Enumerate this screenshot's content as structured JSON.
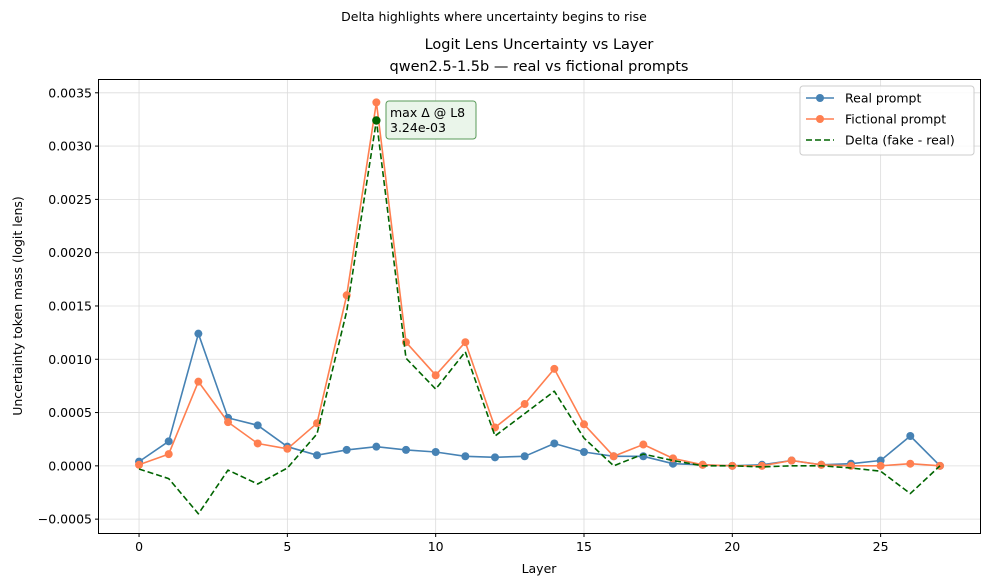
{
  "figure": {
    "suptitle": "Delta highlights where uncertainty begins to rise"
  },
  "chart_data": {
    "type": "line",
    "title_line1": "Logit Lens Uncertainty vs Layer",
    "title_line2": "qwen2.5-1.5b — real vs fictional prompts",
    "xlabel": "Layer",
    "ylabel": "Uncertainty token mass (logit lens)",
    "xlim": [
      -1.35,
      28.35
    ],
    "ylim": [
      -0.00063,
      0.00362
    ],
    "x_ticks": [
      0,
      5,
      10,
      15,
      20,
      25
    ],
    "x_tick_labels": [
      "0",
      "5",
      "10",
      "15",
      "20",
      "25"
    ],
    "y_ticks": [
      -0.0005,
      0.0,
      0.0005,
      0.001,
      0.0015,
      0.002,
      0.0025,
      0.003,
      0.0035
    ],
    "y_tick_labels": [
      "−0.0005",
      "0.0000",
      "0.0005",
      "0.0010",
      "0.0015",
      "0.0020",
      "0.0025",
      "0.0030",
      "0.0035"
    ],
    "grid": true,
    "legend_position": "top-right",
    "x": [
      0,
      1,
      2,
      3,
      4,
      5,
      6,
      7,
      8,
      9,
      10,
      11,
      12,
      13,
      14,
      15,
      16,
      17,
      18,
      19,
      20,
      21,
      22,
      23,
      24,
      25,
      26,
      27
    ],
    "series": [
      {
        "name": "Real prompt",
        "color": "#4682b4",
        "style": "solid-marker",
        "values": [
          4e-05,
          0.00023,
          0.00124,
          0.00045,
          0.00038,
          0.00018,
          0.0001,
          0.00015,
          0.00018,
          0.00015,
          0.00013,
          9e-05,
          8e-05,
          9e-05,
          0.00021,
          0.00013,
          9e-05,
          9e-05,
          2e-05,
          1e-05,
          0.0,
          1e-05,
          5e-05,
          1e-05,
          2e-05,
          5e-05,
          0.00028,
          0.0
        ]
      },
      {
        "name": "Fictional prompt",
        "color": "#ff7f50",
        "style": "solid-marker",
        "values": [
          1e-05,
          0.00011,
          0.00079,
          0.00041,
          0.00021,
          0.00016,
          0.0004,
          0.0016,
          0.00341,
          0.00116,
          0.00085,
          0.00116,
          0.00036,
          0.00058,
          0.00091,
          0.00039,
          9e-05,
          0.0002,
          7e-05,
          1e-05,
          0.0,
          0.0,
          5e-05,
          1e-05,
          0.0,
          0.0,
          2e-05,
          0.0
        ]
      },
      {
        "name": "Delta (fake - real)",
        "color": "#006400",
        "style": "dashed",
        "values": [
          -3e-05,
          -0.00012,
          -0.00045,
          -4e-05,
          -0.00017,
          -2e-05,
          0.0003,
          0.00145,
          0.00324,
          0.00101,
          0.00072,
          0.00107,
          0.00028,
          0.00049,
          0.0007,
          0.00026,
          0.0,
          0.00011,
          5e-05,
          0.0,
          0.0,
          -1e-05,
          0.0,
          0.0,
          -2e-05,
          -5e-05,
          -0.00026,
          0.0
        ]
      }
    ],
    "annotation": {
      "x": 8,
      "y": 0.00324,
      "line1": "max Δ @ L8",
      "line2": "3.24e-03",
      "box_fill": "#eaf5ea",
      "box_stroke": "#5a9a5a",
      "marker_color": "#006400"
    }
  }
}
